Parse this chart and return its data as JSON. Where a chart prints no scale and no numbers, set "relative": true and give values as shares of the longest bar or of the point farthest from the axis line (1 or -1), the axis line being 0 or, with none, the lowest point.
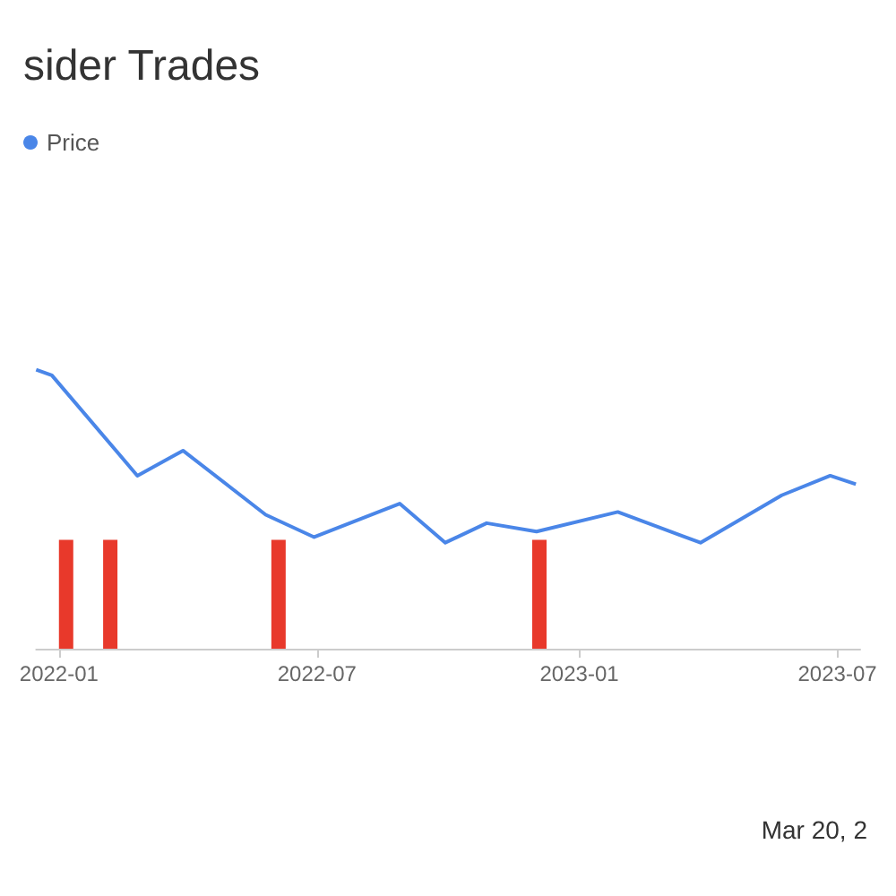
{
  "chart_data": {
    "type": "line",
    "title": "sider Trades",
    "relative": true,
    "xlim": [
      "2021-12-16",
      "2023-07-17"
    ],
    "xticks": [
      {
        "value": "2022-01-01",
        "label": "2022-01"
      },
      {
        "value": "2022-07-01",
        "label": "2022-07"
      },
      {
        "value": "2023-01-01",
        "label": "2023-01"
      },
      {
        "value": "2023-07-01",
        "label": "2023-07"
      }
    ],
    "series": [
      {
        "name": "Price",
        "color": "#4a86e8",
        "x": [
          "2021-12-16",
          "2021-12-27",
          "2022-02-25",
          "2022-03-29",
          "2022-05-26",
          "2022-06-29",
          "2022-08-28",
          "2022-09-29",
          "2022-10-28",
          "2022-12-02",
          "2023-01-28",
          "2023-03-27",
          "2023-05-23",
          "2023-06-26",
          "2023-07-14"
        ],
        "values": [
          1,
          0.98,
          0.62,
          0.71,
          0.48,
          0.4,
          0.52,
          0.38,
          0.45,
          0.42,
          0.49,
          0.38,
          0.55,
          0.62,
          0.59
        ]
      },
      {
        "type": "bar",
        "color": "#e8392b",
        "x": [
          "2022-01-06",
          "2022-02-06",
          "2022-06-04",
          "2022-12-04"
        ],
        "values": [
          0.39,
          0.39,
          0.39,
          0.39
        ]
      }
    ],
    "annotations": [
      "Mar 20, 2"
    ],
    "legend": "top left",
    "marker": "none",
    "line_style": "solid"
  }
}
